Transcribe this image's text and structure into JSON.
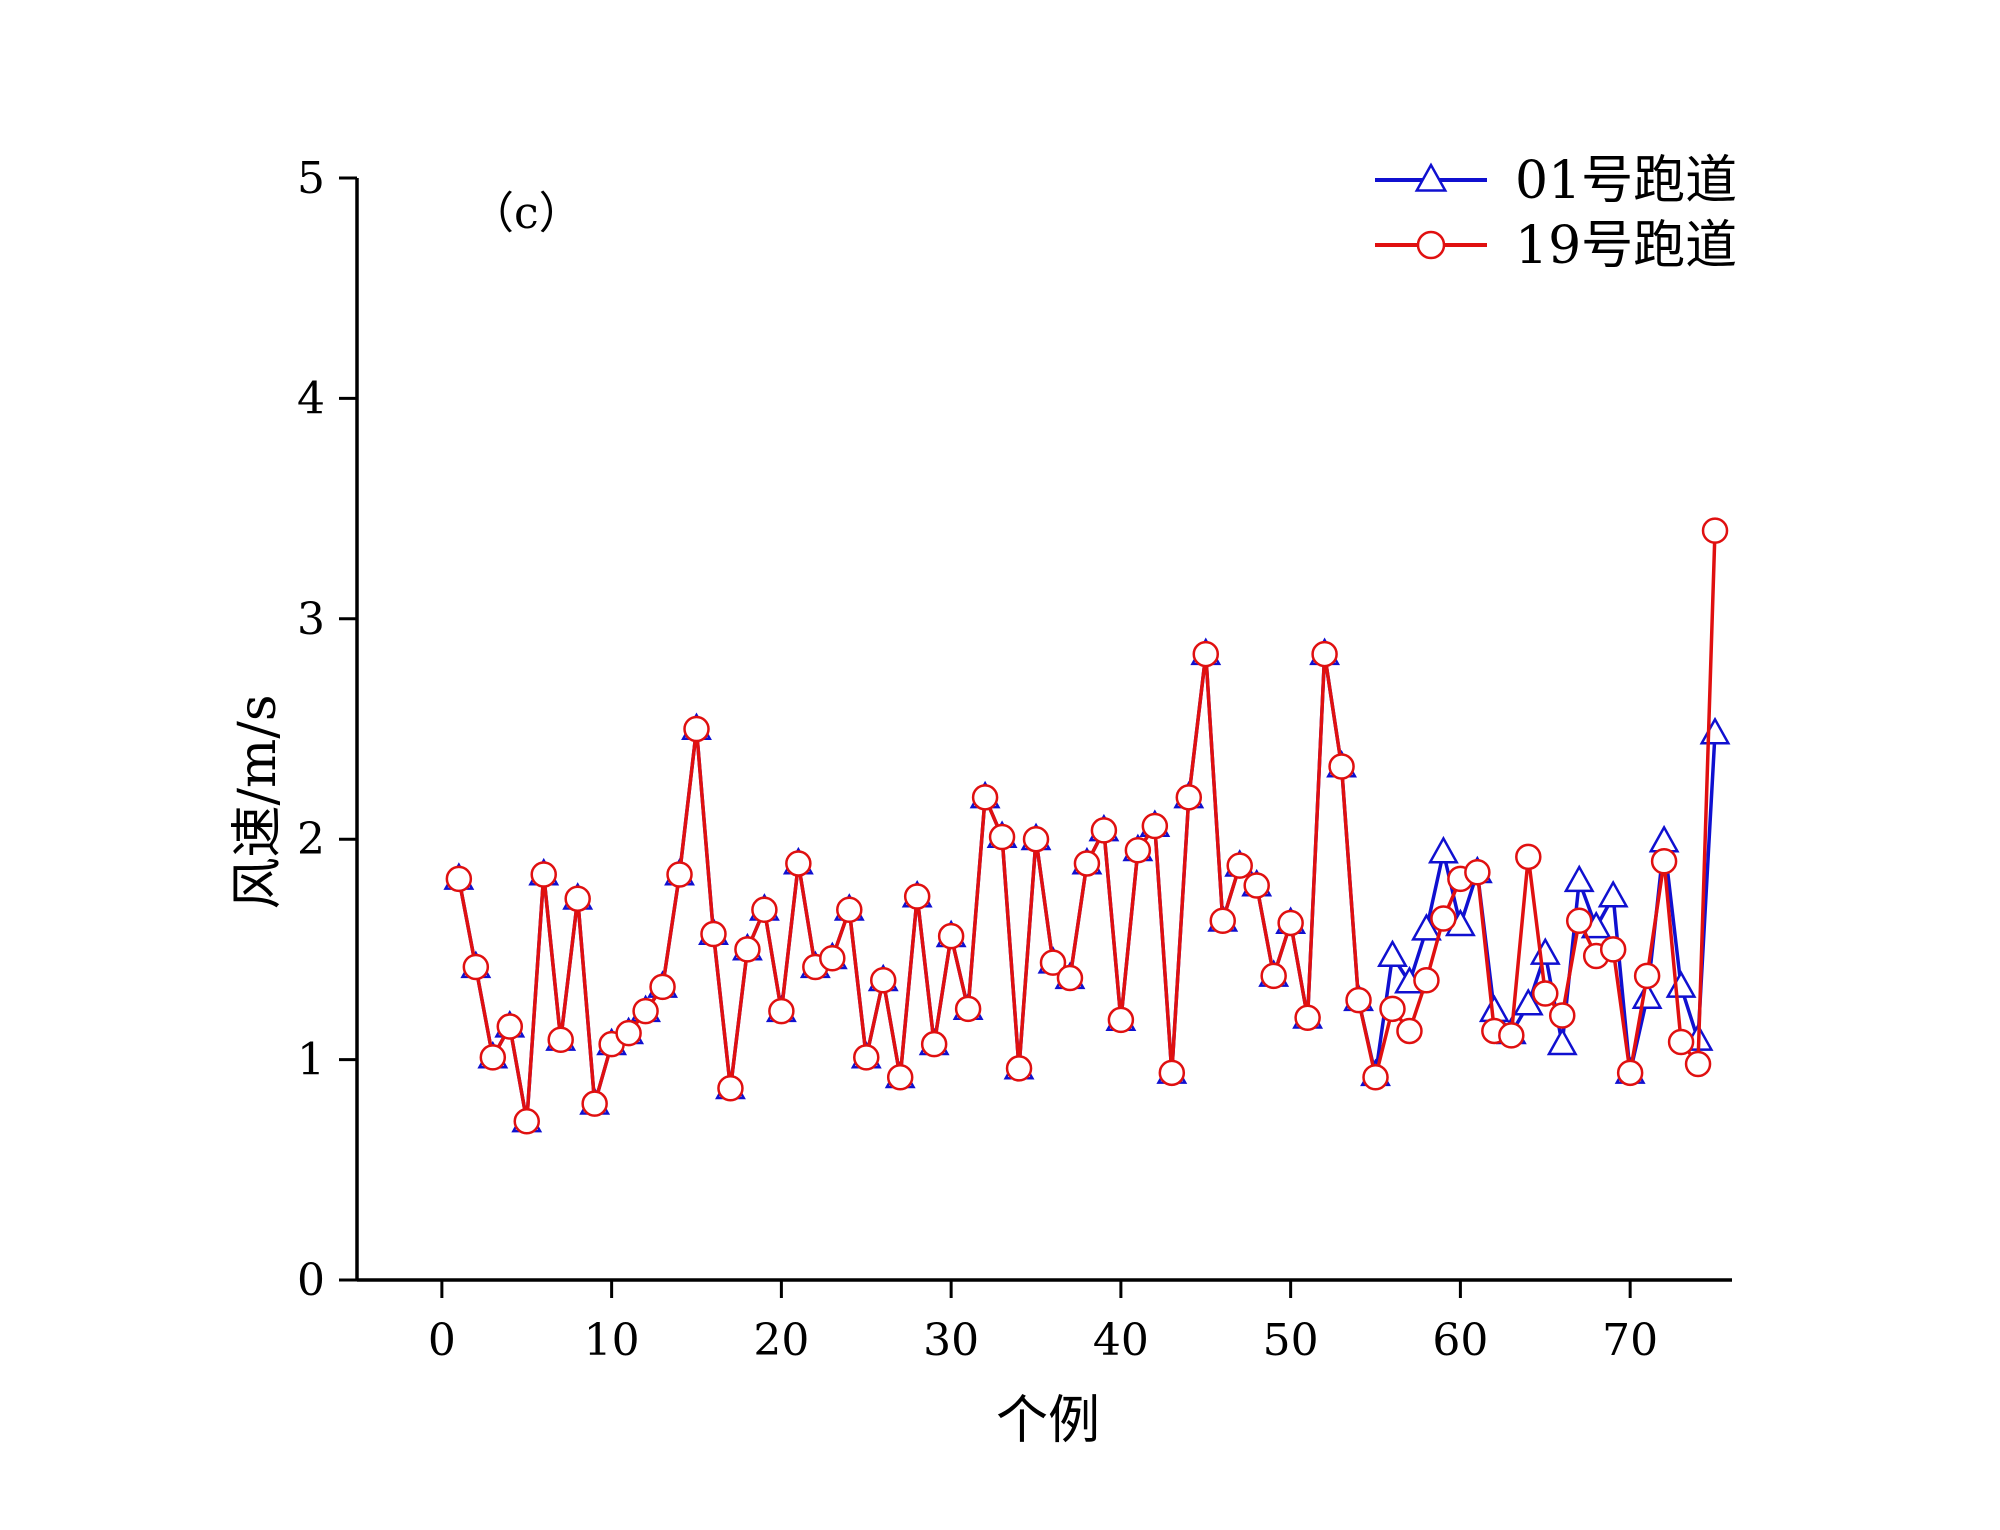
{
  "chart_data": {
    "type": "line",
    "panel_label": "（c）",
    "xlabel": "个例",
    "ylabel": "风速/m/s",
    "xlim": [
      -5,
      76
    ],
    "ylim": [
      0,
      5
    ],
    "xticks": [
      0,
      10,
      20,
      30,
      40,
      50,
      60,
      70
    ],
    "yticks": [
      0,
      1,
      2,
      3,
      4,
      5
    ],
    "grid": false,
    "legend_position": "top-right",
    "x": [
      1,
      2,
      3,
      4,
      5,
      6,
      7,
      8,
      9,
      10,
      11,
      12,
      13,
      14,
      15,
      16,
      17,
      18,
      19,
      20,
      21,
      22,
      23,
      24,
      25,
      26,
      27,
      28,
      29,
      30,
      31,
      32,
      33,
      34,
      35,
      36,
      37,
      38,
      39,
      40,
      41,
      42,
      43,
      44,
      45,
      46,
      47,
      48,
      49,
      50,
      51,
      52,
      53,
      54,
      55,
      56,
      57,
      58,
      59,
      60,
      61,
      62,
      63,
      64,
      65,
      66,
      67,
      68,
      69,
      70,
      71,
      72,
      73,
      74,
      75
    ],
    "series": [
      {
        "name": "01号跑道",
        "color": "#1010d0",
        "marker": "triangle",
        "values": [
          1.82,
          1.42,
          1.01,
          1.15,
          0.72,
          1.84,
          1.09,
          1.73,
          0.8,
          1.07,
          1.12,
          1.22,
          1.33,
          1.84,
          2.5,
          1.57,
          0.87,
          1.5,
          1.68,
          1.22,
          1.89,
          1.42,
          1.46,
          1.68,
          1.01,
          1.36,
          0.92,
          1.74,
          1.07,
          1.56,
          1.23,
          2.19,
          2.01,
          0.96,
          2.0,
          1.44,
          1.37,
          1.89,
          2.04,
          1.18,
          1.95,
          2.06,
          0.94,
          2.19,
          2.84,
          1.63,
          1.88,
          1.79,
          1.38,
          1.62,
          1.19,
          2.84,
          2.33,
          1.27,
          0.93,
          1.47,
          1.35,
          1.59,
          1.94,
          1.61,
          1.85,
          1.22,
          1.12,
          1.25,
          1.48,
          1.07,
          1.81,
          1.6,
          1.74,
          0.94,
          1.28,
          1.99,
          1.33,
          1.09,
          2.48
        ]
      },
      {
        "name": "19号跑道",
        "color": "#e01010",
        "marker": "circle",
        "values": [
          1.82,
          1.42,
          1.01,
          1.15,
          0.72,
          1.84,
          1.09,
          1.73,
          0.8,
          1.07,
          1.12,
          1.22,
          1.33,
          1.84,
          2.5,
          1.57,
          0.87,
          1.5,
          1.68,
          1.22,
          1.89,
          1.42,
          1.46,
          1.68,
          1.01,
          1.36,
          0.92,
          1.74,
          1.07,
          1.56,
          1.23,
          2.19,
          2.01,
          0.96,
          2.0,
          1.44,
          1.37,
          1.89,
          2.04,
          1.18,
          1.95,
          2.06,
          0.94,
          2.19,
          2.84,
          1.63,
          1.88,
          1.79,
          1.38,
          1.62,
          1.19,
          2.84,
          2.33,
          1.27,
          0.92,
          1.23,
          1.13,
          1.36,
          1.64,
          1.82,
          1.85,
          1.13,
          1.11,
          1.92,
          1.3,
          1.2,
          1.63,
          1.47,
          1.5,
          0.94,
          1.38,
          1.9,
          1.08,
          0.98,
          3.4
        ]
      }
    ]
  }
}
